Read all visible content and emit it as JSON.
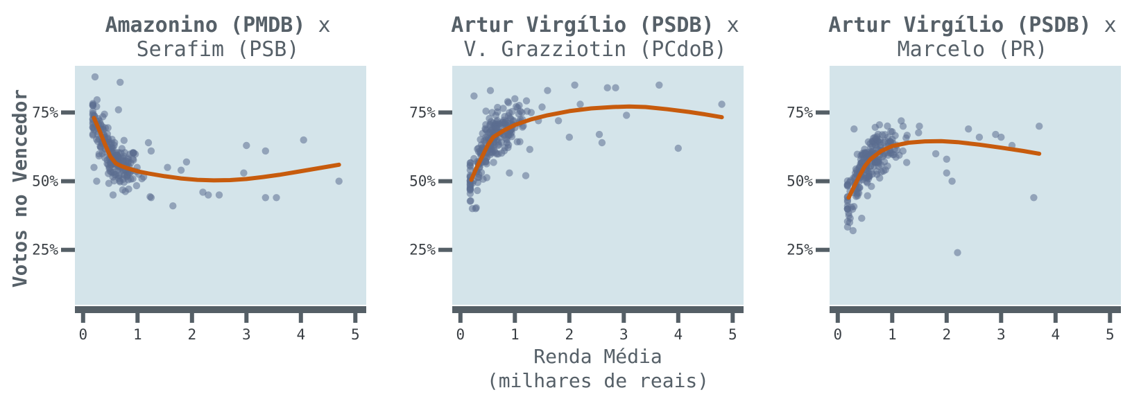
{
  "colors": {
    "panel_bg": "#d4e4ea",
    "point": "#5b6e90",
    "curve": "#c75b0d",
    "axis": "#555f66",
    "text": "#566068"
  },
  "ylabel": "Votos no Vencedor",
  "xlabel_line1": "Renda Média",
  "xlabel_line2": "(milhares de reais)",
  "chart_data": [
    {
      "type": "scatter",
      "title_bold": "Amazonino (PMDB)",
      "title_rest": " x",
      "title_line2": "Serafim (PSB)",
      "xlim": [
        -0.15,
        5.2
      ],
      "ylim": [
        5,
        92
      ],
      "x_ticks": [
        0,
        1,
        2,
        3,
        4,
        5
      ],
      "x_tick_labels": [
        "0",
        "1",
        "2",
        "3",
        "4",
        "5"
      ],
      "y_ticks": [
        25,
        50,
        75
      ],
      "y_tick_labels": [
        "25%",
        "50%",
        "75%"
      ],
      "grid": false,
      "cluster": {
        "x_mean": 0.55,
        "x_sd": 0.25,
        "n": 200
      },
      "outliers": [
        [
          0.22,
          88
        ],
        [
          0.68,
          86
        ],
        [
          0.65,
          76
        ],
        [
          0.2,
          55
        ],
        [
          0.55,
          45
        ],
        [
          1.25,
          44
        ],
        [
          1.65,
          41
        ],
        [
          1.2,
          64
        ],
        [
          1.25,
          61
        ],
        [
          2.3,
          45
        ],
        [
          2.5,
          45
        ],
        [
          3.0,
          63
        ],
        [
          3.35,
          61
        ],
        [
          4.05,
          65
        ],
        [
          3.35,
          44
        ],
        [
          3.55,
          44
        ],
        [
          4.7,
          50
        ],
        [
          2.95,
          53
        ],
        [
          0.25,
          50
        ],
        [
          1.9,
          57
        ],
        [
          2.2,
          46
        ],
        [
          1.55,
          55
        ],
        [
          1.8,
          54
        ]
      ],
      "fit_curve": [
        [
          0.2,
          73
        ],
        [
          0.3,
          68.5
        ],
        [
          0.4,
          63.5
        ],
        [
          0.5,
          59
        ],
        [
          0.6,
          56.5
        ],
        [
          0.7,
          55.5
        ],
        [
          0.8,
          54.8
        ],
        [
          1.0,
          53.6
        ],
        [
          1.2,
          52.8
        ],
        [
          1.5,
          51.8
        ],
        [
          1.8,
          51
        ],
        [
          2.1,
          50.5
        ],
        [
          2.4,
          50.3
        ],
        [
          2.7,
          50.4
        ],
        [
          3.0,
          50.8
        ],
        [
          3.3,
          51.5
        ],
        [
          3.6,
          52.3
        ],
        [
          3.9,
          53.3
        ],
        [
          4.2,
          54.3
        ],
        [
          4.5,
          55.3
        ],
        [
          4.7,
          56
        ]
      ]
    },
    {
      "type": "scatter",
      "title_bold": "Artur Virgílio (PSDB)",
      "title_rest": " x",
      "title_line2": "V. Grazziotin (PCdoB)",
      "xlim": [
        -0.15,
        5.2
      ],
      "ylim": [
        5,
        92
      ],
      "x_ticks": [
        0,
        1,
        2,
        3,
        4,
        5
      ],
      "x_tick_labels": [
        "0",
        "1",
        "2",
        "3",
        "4",
        "5"
      ],
      "y_ticks": [
        25,
        50,
        75
      ],
      "y_tick_labels": [
        "25%",
        "50%",
        "75%"
      ],
      "grid": false,
      "cluster": {
        "x_mean": 0.6,
        "x_sd": 0.3,
        "n": 230
      },
      "outliers": [
        [
          0.25,
          81
        ],
        [
          0.55,
          83
        ],
        [
          0.22,
          40
        ],
        [
          0.28,
          40
        ],
        [
          1.2,
          52
        ],
        [
          0.9,
          53
        ],
        [
          1.6,
          83
        ],
        [
          2.1,
          85
        ],
        [
          2.7,
          84
        ],
        [
          2.85,
          84
        ],
        [
          3.65,
          85
        ],
        [
          3.05,
          74
        ],
        [
          4.0,
          62
        ],
        [
          4.8,
          78
        ],
        [
          2.55,
          67
        ],
        [
          2.6,
          64
        ],
        [
          2.0,
          66
        ],
        [
          1.8,
          72
        ],
        [
          2.2,
          78
        ],
        [
          1.5,
          77
        ],
        [
          1.0,
          80
        ],
        [
          1.3,
          75
        ]
      ],
      "fit_curve": [
        [
          0.2,
          50.5
        ],
        [
          0.3,
          55
        ],
        [
          0.4,
          59
        ],
        [
          0.5,
          63
        ],
        [
          0.6,
          66
        ],
        [
          0.8,
          68.5
        ],
        [
          1.0,
          70.5
        ],
        [
          1.3,
          72.5
        ],
        [
          1.6,
          74
        ],
        [
          2.0,
          75.5
        ],
        [
          2.4,
          76.5
        ],
        [
          2.8,
          77
        ],
        [
          3.1,
          77.2
        ],
        [
          3.4,
          77
        ],
        [
          3.8,
          76.2
        ],
        [
          4.2,
          75.2
        ],
        [
          4.5,
          74.3
        ],
        [
          4.8,
          73.3
        ]
      ]
    },
    {
      "type": "scatter",
      "title_bold": "Artur Virgílio (PSDB)",
      "title_rest": " x",
      "title_line2": "Marcelo (PR)",
      "xlim": [
        -0.15,
        5.2
      ],
      "ylim": [
        5,
        92
      ],
      "x_ticks": [
        0,
        1,
        2,
        3,
        4,
        5
      ],
      "x_tick_labels": [
        "0",
        "1",
        "2",
        "3",
        "4",
        "5"
      ],
      "y_ticks": [
        25,
        50,
        75
      ],
      "y_tick_labels": [
        "25%",
        "50%",
        "75%"
      ],
      "grid": false,
      "cluster": {
        "x_mean": 0.6,
        "x_sd": 0.28,
        "n": 230
      },
      "outliers": [
        [
          0.28,
          32
        ],
        [
          0.22,
          35
        ],
        [
          0.3,
          69
        ],
        [
          2.2,
          24
        ],
        [
          3.6,
          44
        ],
        [
          3.7,
          70
        ],
        [
          2.4,
          69
        ],
        [
          2.9,
          67
        ],
        [
          3.2,
          63
        ],
        [
          1.8,
          60
        ],
        [
          2.0,
          58
        ],
        [
          2.1,
          50
        ],
        [
          2.0,
          53
        ],
        [
          1.2,
          70
        ],
        [
          1.5,
          70
        ],
        [
          2.6,
          66
        ],
        [
          1.0,
          68
        ],
        [
          3.0,
          66
        ]
      ],
      "fit_curve": [
        [
          0.2,
          44
        ],
        [
          0.3,
          48
        ],
        [
          0.4,
          52
        ],
        [
          0.5,
          55.5
        ],
        [
          0.6,
          58
        ],
        [
          0.8,
          61
        ],
        [
          1.0,
          62.8
        ],
        [
          1.3,
          64
        ],
        [
          1.6,
          64.5
        ],
        [
          1.9,
          64.6
        ],
        [
          2.2,
          64.2
        ],
        [
          2.6,
          63.3
        ],
        [
          3.0,
          62.2
        ],
        [
          3.4,
          61
        ],
        [
          3.7,
          60
        ]
      ]
    }
  ]
}
